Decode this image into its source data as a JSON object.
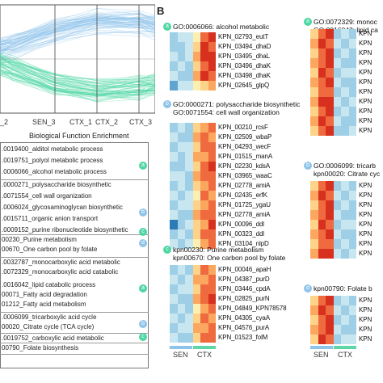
{
  "panel_b_label": "B",
  "panel_a": {
    "x_labels": [
      "_2",
      "SEN_3",
      "CTX_1",
      "CTX_2",
      "CTX_3"
    ],
    "enrichment_title": "Biological Function Enrichment",
    "line_colors": {
      "top": "#8ec3ea",
      "bottom": "#4ed6a3"
    },
    "items": [
      ".0019400_alditol metabolic process",
      ".0019751_polyol metabolic process",
      ".0006066_alcohol metabolic process",
      ".0000271_polysaccharide biosynthetic",
      ".0071554_cell wall organization",
      ".0006024_glycosaminoglycan biosynthetic",
      ".0015711_organic anion transport",
      ".0009152_purine ribonucleotide biosynthetic",
      "00230_Purine metabolism",
      "00670_One carbon pool by folate",
      ".0032787_monocarboxylic acid metabolic",
      ".0072329_monocarboxylic acid catabolic",
      ".0016042_lipid catabolic process",
      "00071_Fatty acid degradation",
      "01212_Fatty acid metabolism",
      ".0006099_tricarboxylic acid cycle",
      "00020_Citrate cycle (TCA cycle)",
      ".0019752_carboxylic acid metabolic",
      "00790_Folate biosynthesis"
    ],
    "badges": [
      "a",
      "b",
      "c",
      "d",
      "a",
      "b",
      "c"
    ]
  },
  "heatmaps": {
    "a": {
      "badge": "a",
      "terms": [
        "GO:0006066: alcohol metabolic"
      ],
      "genes": [
        "KPN_02793_eutT",
        "KPN_03494_dhaD",
        "KPN_03495_dhaL",
        "KPN_03496_dhaK",
        "KPN_03498_dhaK",
        "KPN_02645_glpQ"
      ],
      "rows": [
        [
          2,
          3,
          3,
          5,
          8,
          9
        ],
        [
          2,
          2,
          3,
          6,
          9,
          8
        ],
        [
          3,
          2,
          3,
          7,
          9,
          9
        ],
        [
          2,
          3,
          2,
          6,
          8,
          9
        ],
        [
          3,
          2,
          2,
          7,
          9,
          8
        ],
        [
          1,
          3,
          3,
          5,
          6,
          7
        ]
      ]
    },
    "b": {
      "badge": "b",
      "terms": [
        "GO:0000271: polysaccharide biosynthetic",
        "GO:0071554: cell wall organization"
      ],
      "genes": [
        "KPN_00210_rcsF",
        "KPN_02509_wbaP",
        "KPN_04293_wecF",
        "KPN_01515_manA",
        "KPN_02230_kdsA",
        "KPN_03965_waaC",
        "KPN_02778_amiA",
        "KPN_02435_erfK",
        "KPN_01725_ygaU",
        "KPN_02778_amiA",
        "KPN_00096_ddl",
        "KPN_00323_ddl",
        "KPN_03104_nlpD"
      ],
      "rows": [
        [
          2,
          3,
          2,
          6,
          7,
          8
        ],
        [
          3,
          2,
          2,
          7,
          8,
          7
        ],
        [
          2,
          3,
          3,
          6,
          8,
          8
        ],
        [
          3,
          2,
          3,
          7,
          7,
          8
        ],
        [
          2,
          2,
          3,
          6,
          8,
          9
        ],
        [
          3,
          3,
          2,
          7,
          8,
          8
        ],
        [
          2,
          3,
          2,
          6,
          7,
          8
        ],
        [
          3,
          2,
          3,
          5,
          8,
          7
        ],
        [
          2,
          3,
          3,
          6,
          7,
          8
        ],
        [
          3,
          2,
          2,
          7,
          8,
          8
        ],
        [
          0,
          2,
          3,
          6,
          7,
          9
        ],
        [
          2,
          3,
          2,
          6,
          8,
          8
        ],
        [
          3,
          2,
          3,
          5,
          7,
          8
        ]
      ]
    },
    "c": {
      "badge": "c",
      "terms": [
        "kpn00230: Purine metabolism",
        "kpn00670: One carbon pool by folate"
      ],
      "genes": [
        "KPN_00046_apaH",
        "KPN_04387_purD",
        "KPN_03446_cpdA",
        "KPN_02825_purN",
        "KPN_04849_KPN78578",
        "KPN_04305_cyaA",
        "KPN_04576_purA",
        "KPN_01523_folM"
      ],
      "rows": [
        [
          2,
          3,
          2,
          6,
          8,
          7
        ],
        [
          3,
          2,
          3,
          7,
          7,
          8
        ],
        [
          2,
          3,
          3,
          6,
          8,
          8
        ],
        [
          3,
          2,
          2,
          7,
          8,
          9
        ],
        [
          2,
          3,
          2,
          5,
          7,
          8
        ],
        [
          3,
          2,
          3,
          6,
          8,
          7
        ],
        [
          2,
          3,
          3,
          7,
          7,
          8
        ],
        [
          3,
          2,
          2,
          6,
          8,
          8
        ]
      ]
    },
    "d_top": {
      "badge": "a",
      "terms": [
        "GO:0072329: monoc",
        "GO:0016042: lipid ca"
      ],
      "rows": [
        [
          6,
          8,
          9,
          2,
          3,
          2
        ],
        [
          7,
          9,
          8,
          3,
          2,
          3
        ],
        [
          6,
          8,
          9,
          2,
          3,
          2
        ],
        [
          7,
          8,
          9,
          3,
          2,
          2
        ],
        [
          6,
          9,
          8,
          2,
          3,
          3
        ],
        [
          7,
          8,
          9,
          3,
          2,
          2
        ],
        [
          6,
          8,
          8,
          2,
          3,
          2
        ],
        [
          7,
          9,
          9,
          3,
          2,
          3
        ],
        [
          6,
          8,
          9,
          2,
          3,
          2
        ],
        [
          7,
          9,
          8,
          3,
          2,
          2
        ],
        [
          6,
          8,
          9,
          2,
          2,
          3
        ]
      ],
      "genes": [
        "KPN",
        "KPN",
        "KPN",
        "KPN",
        "KPN",
        "KPN",
        "KPN",
        "KPN",
        "KPN",
        "KPN",
        "KPN"
      ]
    },
    "e": {
      "badge": "b",
      "terms": [
        "GO:0006099: tricarb",
        "kpn00020: Citrate cyc"
      ],
      "genes": [
        "KPN",
        "KPN",
        "KPN",
        "KPN",
        "KPN",
        "KPN",
        "KPN",
        "KPN"
      ],
      "rows": [
        [
          6,
          8,
          9,
          2,
          3,
          2
        ],
        [
          7,
          9,
          8,
          3,
          2,
          3
        ],
        [
          6,
          8,
          9,
          2,
          3,
          2
        ],
        [
          7,
          8,
          9,
          3,
          2,
          2
        ],
        [
          6,
          9,
          8,
          2,
          3,
          3
        ],
        [
          7,
          8,
          9,
          3,
          2,
          2
        ],
        [
          6,
          8,
          8,
          2,
          3,
          2
        ],
        [
          7,
          9,
          9,
          3,
          2,
          3
        ]
      ]
    },
    "f": {
      "badge": "d",
      "terms": [
        "kpn00790: Folate b"
      ],
      "genes": [
        "KPN",
        "KPN",
        "KPN",
        "KPN",
        "KPN"
      ],
      "rows": [
        [
          6,
          8,
          9,
          2,
          3,
          2
        ],
        [
          7,
          9,
          8,
          3,
          2,
          3
        ],
        [
          6,
          8,
          9,
          2,
          3,
          2
        ],
        [
          7,
          8,
          9,
          3,
          2,
          2
        ],
        [
          6,
          9,
          8,
          2,
          3,
          3
        ]
      ]
    }
  },
  "group_labels": {
    "sen": "SEN",
    "ctx": "CTX"
  },
  "group_colors": {
    "sen": "#8fc4ea",
    "ctx": "#5fd6a6"
  },
  "badge_colors": {
    "a": "#4ed6a3",
    "b": "#8fc4ea",
    "c": "#4ed6a3",
    "d": "#8fc4ea"
  }
}
